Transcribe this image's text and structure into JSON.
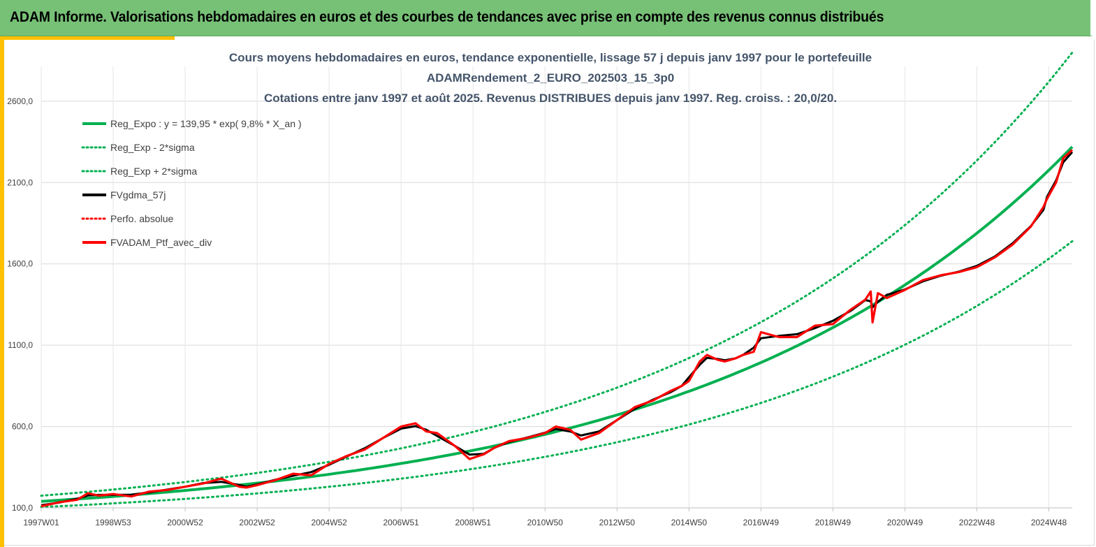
{
  "header": {
    "title": "ADAM Informe. Valorisations hebdomadaires en euros et des courbes de tendances avec prise en compte des revenus connus distribués"
  },
  "colors": {
    "header_bg": "#77c177",
    "accent": "#ffc000",
    "trend": "#00b050",
    "smoothed": "#000000",
    "portfolio": "#ff0000"
  },
  "chart_data": {
    "type": "line",
    "title": [
      "Cours moyens hebdomadaires  en euros, tendance exponentielle, lissage 57 j depuis janv 1997 pour le portefeuille",
      "ADAMRendement_2_EURO_202503_15_3p0",
      "Cotations  entre janv 1997 et août 2025. Revenus DISTRIBUES depuis janv 1997. Reg. croiss. : 20,0/20."
    ],
    "ylim": [
      100,
      2900
    ],
    "yticks": [
      "100,0",
      "600,0",
      "1100,0",
      "1600,0",
      "2100,0",
      "2600,0"
    ],
    "xlim": [
      1997.0,
      2025.65
    ],
    "xticks": [
      {
        "label": "1997W01",
        "year": 1997.0
      },
      {
        "label": "1998W53",
        "year": 1999.0
      },
      {
        "label": "2000W52",
        "year": 2001.0
      },
      {
        "label": "2002W52",
        "year": 2003.0
      },
      {
        "label": "2004W52",
        "year": 2005.0
      },
      {
        "label": "2006W51",
        "year": 2007.0
      },
      {
        "label": "2008W51",
        "year": 2009.0
      },
      {
        "label": "2010W50",
        "year": 2011.0
      },
      {
        "label": "2012W50",
        "year": 2013.0
      },
      {
        "label": "2014W50",
        "year": 2015.0
      },
      {
        "label": "2016W49",
        "year": 2017.0
      },
      {
        "label": "2018W49",
        "year": 2019.0
      },
      {
        "label": "2020W49",
        "year": 2021.0
      },
      {
        "label": "2022W48",
        "year": 2023.0
      },
      {
        "label": "2024W48",
        "year": 2025.0
      }
    ],
    "grid": true,
    "legend_position": "top-left",
    "trend": {
      "a": 139.95,
      "rate": 0.098,
      "sigma_factor": 0.25
    },
    "series": [
      {
        "name": "Reg_Expo : y = 139,95 * exp( 9,8% *  X_an )",
        "color": "#00b050",
        "style": "solid",
        "kind": "trend"
      },
      {
        "name": "Reg_Exp - 2*sigma",
        "color": "#00b050",
        "style": "dotted",
        "kind": "trend_low"
      },
      {
        "name": "Reg_Exp + 2*sigma",
        "color": "#00b050",
        "style": "dotted",
        "kind": "trend_high"
      },
      {
        "name": "FVgdma_57j",
        "color": "#000000",
        "style": "solid",
        "kind": "smoothed"
      },
      {
        "name": "Perfo. absolue",
        "color": "#ff0000",
        "style": "dotted",
        "kind": "absolute"
      },
      {
        "name": "FVADAM_Ptf_avec_div",
        "color": "#ff0000",
        "style": "solid",
        "kind": "portfolio",
        "x": [
          1997.0,
          1997.5,
          1998.0,
          1998.3,
          1998.6,
          1998.8,
          1999.0,
          1999.5,
          2000.0,
          2000.5,
          2001.0,
          2001.5,
          2002.0,
          2002.5,
          2002.7,
          2003.0,
          2003.5,
          2004.0,
          2004.5,
          2005.0,
          2005.5,
          2006.0,
          2006.5,
          2007.0,
          2007.4,
          2007.7,
          2008.0,
          2008.5,
          2008.9,
          2009.3,
          2009.6,
          2010.0,
          2010.5,
          2011.0,
          2011.3,
          2011.7,
          2012.0,
          2012.5,
          2013.0,
          2013.5,
          2014.0,
          2014.5,
          2014.8,
          2015.0,
          2015.3,
          2015.5,
          2015.8,
          2016.0,
          2016.3,
          2016.5,
          2016.8,
          2017.0,
          2017.5,
          2018.0,
          2018.5,
          2019.0,
          2019.5,
          2019.9,
          2020.05,
          2020.1,
          2020.25,
          2020.5,
          2021.0,
          2021.5,
          2022.0,
          2022.5,
          2023.0,
          2023.5,
          2024.0,
          2024.5,
          2024.85,
          2024.95,
          2025.2,
          2025.4,
          2025.65
        ],
        "y": [
          110,
          135,
          150,
          190,
          175,
          180,
          185,
          170,
          200,
          210,
          230,
          250,
          280,
          230,
          225,
          240,
          270,
          310,
          300,
          370,
          420,
          460,
          530,
          600,
          620,
          570,
          560,
          480,
          400,
          430,
          470,
          510,
          530,
          560,
          600,
          580,
          520,
          560,
          640,
          720,
          760,
          820,
          850,
          880,
          1000,
          1040,
          1010,
          1000,
          1020,
          1040,
          1060,
          1180,
          1150,
          1150,
          1220,
          1230,
          1320,
          1380,
          1430,
          1240,
          1420,
          1390,
          1440,
          1500,
          1530,
          1550,
          1580,
          1640,
          1720,
          1830,
          1950,
          2000,
          2100,
          2250,
          2300
        ]
      }
    ]
  }
}
